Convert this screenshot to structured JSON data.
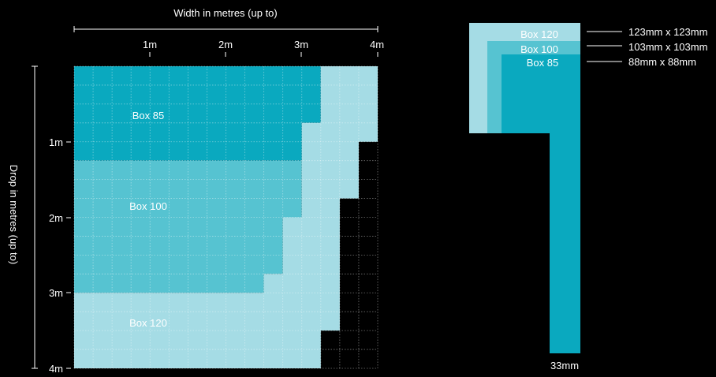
{
  "chart": {
    "x_axis_label": "Width in metres (up to)",
    "y_axis_label": "Drop in metres (up to)",
    "x_ticks": [
      "1m",
      "2m",
      "3m",
      "4m"
    ],
    "y_ticks": [
      "1m",
      "2m",
      "3m",
      "4m"
    ],
    "x_max_m": 4,
    "y_max_m": 4,
    "grid_divisions_per_metre": 4,
    "regions": [
      {
        "name": "Box 85",
        "color": "#0aa9bf",
        "outline_steps_m": [
          [
            0,
            0
          ],
          [
            3.25,
            0
          ],
          [
            3.25,
            0.75
          ],
          [
            3.0,
            0.75
          ],
          [
            3.0,
            1.25
          ],
          [
            0,
            1.25
          ]
        ]
      },
      {
        "name": "Box 100",
        "color": "#56c3d1",
        "outline_steps_m": [
          [
            0,
            1.25
          ],
          [
            3.0,
            1.25
          ],
          [
            3.0,
            2.0
          ],
          [
            2.75,
            2.0
          ],
          [
            2.75,
            2.75
          ],
          [
            2.5,
            2.75
          ],
          [
            2.5,
            3.0
          ],
          [
            0,
            3.0
          ]
        ]
      },
      {
        "name": "Box 120",
        "color": "#a5dce5",
        "outline_steps_m": [
          [
            3.25,
            0
          ],
          [
            4.0,
            0
          ],
          [
            4.0,
            1.0
          ],
          [
            3.75,
            1.0
          ],
          [
            3.75,
            1.75
          ],
          [
            3.5,
            1.75
          ],
          [
            3.5,
            3.5
          ],
          [
            3.25,
            3.5
          ],
          [
            3.25,
            4.0
          ],
          [
            0,
            4.0
          ],
          [
            0,
            3.0
          ],
          [
            2.5,
            3.0
          ],
          [
            2.5,
            2.75
          ],
          [
            2.75,
            2.75
          ],
          [
            2.75,
            2.0
          ],
          [
            3.0,
            2.0
          ],
          [
            3.0,
            0.75
          ],
          [
            3.25,
            0.75
          ]
        ]
      }
    ],
    "region_labels": [
      "Box 85",
      "Box 100",
      "Box 120"
    ]
  },
  "profile": {
    "boxes": [
      {
        "name": "Box 120",
        "size": "123mm x 123mm",
        "color": "#a5dce5"
      },
      {
        "name": "Box 100",
        "size": "103mm x 103mm",
        "color": "#56c3d1"
      },
      {
        "name": "Box 85",
        "size": "88mm x 88mm",
        "color": "#0aa9bf"
      }
    ],
    "rail_width_label": "33mm"
  }
}
